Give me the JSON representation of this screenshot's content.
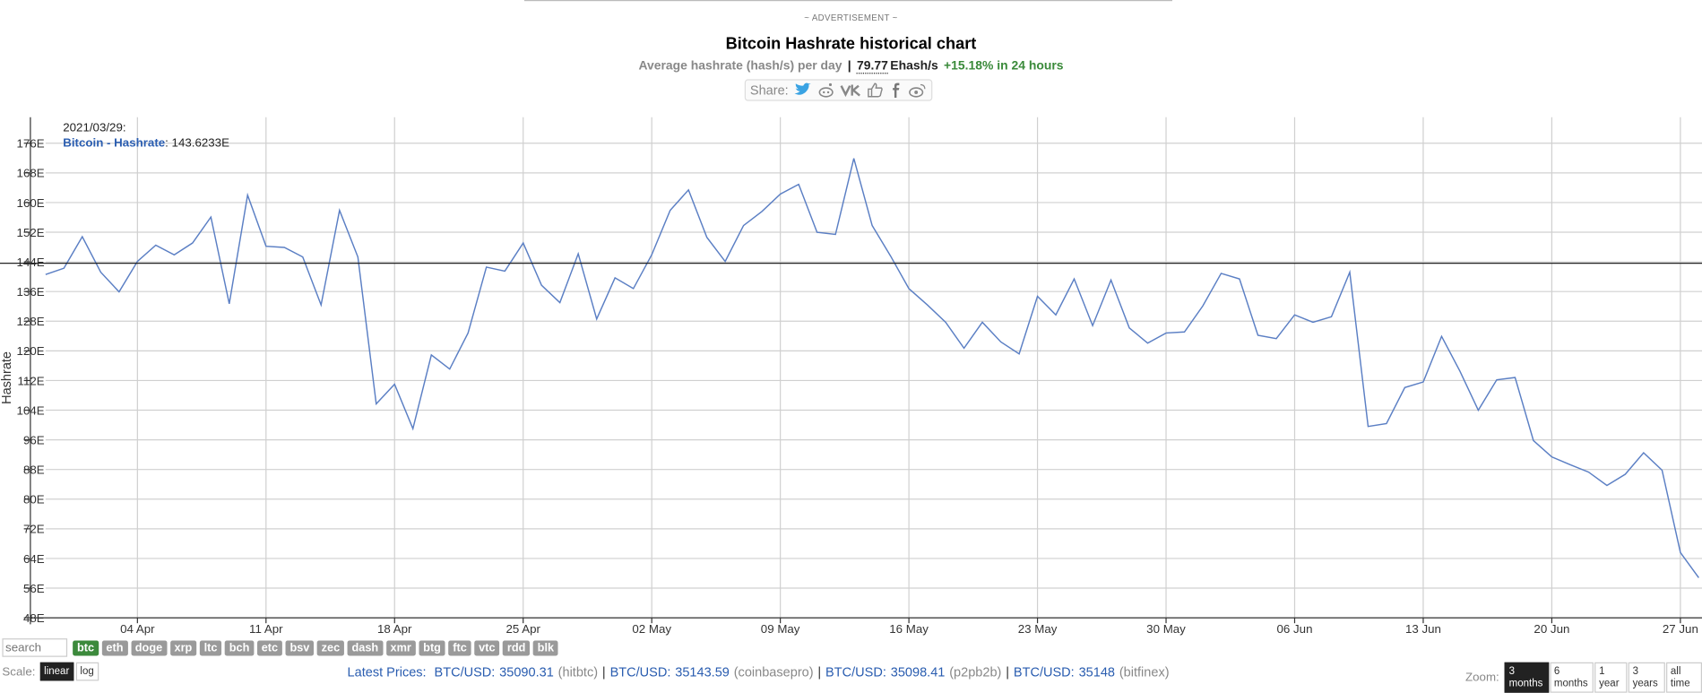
{
  "header": {
    "ad": "~ ADVERTISEMENT ~",
    "title": "Bitcoin Hashrate historical chart",
    "subtitle": "Average hashrate (hash/s) per day",
    "separator": "|",
    "current_value": "79.77",
    "current_unit": "Ehash/s",
    "change": "+15.18% in 24 hours",
    "share": "Share:"
  },
  "chart_data": {
    "type": "line",
    "ylabel": "Hashrate",
    "tooltip": {
      "date": "2021/03/29:",
      "series": "Bitcoin - Hashrate",
      "value": 143.6233,
      "value_label": ": 143.6233E"
    },
    "x": [
      "2021/03/30",
      "2021/03/31",
      "2021/04/01",
      "2021/04/02",
      "2021/04/03",
      "2021/04/04",
      "2021/04/05",
      "2021/04/06",
      "2021/04/07",
      "2021/04/08",
      "2021/04/09",
      "2021/04/10",
      "2021/04/11",
      "2021/04/12",
      "2021/04/13",
      "2021/04/14",
      "2021/04/15",
      "2021/04/16",
      "2021/04/17",
      "2021/04/18",
      "2021/04/19",
      "2021/04/20",
      "2021/04/21",
      "2021/04/22",
      "2021/04/23",
      "2021/04/24",
      "2021/04/25",
      "2021/04/26",
      "2021/04/27",
      "2021/04/28",
      "2021/04/29",
      "2021/04/30",
      "2021/05/01",
      "2021/05/02",
      "2021/05/03",
      "2021/05/04",
      "2021/05/05",
      "2021/05/06",
      "2021/05/07",
      "2021/05/08",
      "2021/05/09",
      "2021/05/10",
      "2021/05/11",
      "2021/05/12",
      "2021/05/13",
      "2021/05/14",
      "2021/05/15",
      "2021/05/16",
      "2021/05/17",
      "2021/05/18",
      "2021/05/19",
      "2021/05/20",
      "2021/05/21",
      "2021/05/22",
      "2021/05/23",
      "2021/05/24",
      "2021/05/25",
      "2021/05/26",
      "2021/05/27",
      "2021/05/28",
      "2021/05/29",
      "2021/05/30",
      "2021/05/31",
      "2021/06/01",
      "2021/06/02",
      "2021/06/03",
      "2021/06/04",
      "2021/06/05",
      "2021/06/06",
      "2021/06/07",
      "2021/06/08",
      "2021/06/09",
      "2021/06/10",
      "2021/06/11",
      "2021/06/12",
      "2021/06/13",
      "2021/06/14",
      "2021/06/15",
      "2021/06/16",
      "2021/06/17",
      "2021/06/18",
      "2021/06/19",
      "2021/06/20",
      "2021/06/21",
      "2021/06/22",
      "2021/06/23",
      "2021/06/24",
      "2021/06/25",
      "2021/06/26",
      "2021/06/27",
      "2021/06/28"
    ],
    "series": [
      {
        "name": "Bitcoin - Hashrate",
        "color": "#5b7fc4",
        "values": [
          140.6,
          142.3,
          150.8,
          141.2,
          135.9,
          144.1,
          148.5,
          145.9,
          149.1,
          156.1,
          132.7,
          162.0,
          148.2,
          147.9,
          145.3,
          132.4,
          157.9,
          145.3,
          105.7,
          111.0,
          99.0,
          118.9,
          115.1,
          124.8,
          142.6,
          141.5,
          149.1,
          137.7,
          133.0,
          146.2,
          128.6,
          139.7,
          136.8,
          145.9,
          157.9,
          163.4,
          150.6,
          144.1,
          153.8,
          157.6,
          162.3,
          164.9,
          152.0,
          151.4,
          171.9,
          153.8,
          145.6,
          136.8,
          132.4,
          127.7,
          120.7,
          127.7,
          122.4,
          119.2,
          134.7,
          129.7,
          139.4,
          126.8,
          139.1,
          126.2,
          122.1,
          124.8,
          125.1,
          132.1,
          140.9,
          139.4,
          124.2,
          123.3,
          129.7,
          127.7,
          129.2,
          141.2,
          99.6,
          100.4,
          110.1,
          111.6,
          123.9,
          114.5,
          104.0,
          112.2,
          112.8,
          95.8,
          91.4,
          89.3,
          87.3,
          83.7,
          86.7,
          92.5,
          87.8,
          65.6,
          58.8
        ]
      }
    ],
    "xlim": [
      "2021/03/30",
      "2021/06/28"
    ],
    "xticks": [
      {
        "value": "2021/04/04",
        "label": "04 Apr"
      },
      {
        "value": "2021/04/11",
        "label": "11 Apr"
      },
      {
        "value": "2021/04/18",
        "label": "18 Apr"
      },
      {
        "value": "2021/04/25",
        "label": "25 Apr"
      },
      {
        "value": "2021/05/02",
        "label": "02 May"
      },
      {
        "value": "2021/05/09",
        "label": "09 May"
      },
      {
        "value": "2021/05/16",
        "label": "16 May"
      },
      {
        "value": "2021/05/23",
        "label": "23 May"
      },
      {
        "value": "2021/05/30",
        "label": "30 May"
      },
      {
        "value": "2021/06/06",
        "label": "06 Jun"
      },
      {
        "value": "2021/06/13",
        "label": "13 Jun"
      },
      {
        "value": "2021/06/20",
        "label": "20 Jun"
      },
      {
        "value": "2021/06/27",
        "label": "27 Jun"
      }
    ],
    "ylim": [
      48,
      183
    ],
    "yticks": [
      {
        "value": 48,
        "label": "48E"
      },
      {
        "value": 56,
        "label": "56E"
      },
      {
        "value": 64,
        "label": "64E"
      },
      {
        "value": 72,
        "label": "72E"
      },
      {
        "value": 80,
        "label": "80E"
      },
      {
        "value": 88,
        "label": "88E"
      },
      {
        "value": 96,
        "label": "96E"
      },
      {
        "value": 104,
        "label": "104E"
      },
      {
        "value": 112,
        "label": "112E"
      },
      {
        "value": 120,
        "label": "120E"
      },
      {
        "value": 128,
        "label": "128E"
      },
      {
        "value": 136,
        "label": "136E"
      },
      {
        "value": 144,
        "label": "144E"
      },
      {
        "value": 152,
        "label": "152E"
      },
      {
        "value": 160,
        "label": "160E"
      },
      {
        "value": 168,
        "label": "168E"
      },
      {
        "value": 176,
        "label": "176E"
      }
    ],
    "grid": true
  },
  "toolbar": {
    "search": "search",
    "coins": [
      "btc",
      "eth",
      "doge",
      "xrp",
      "ltc",
      "bch",
      "etc",
      "bsv",
      "zec",
      "dash",
      "xmr",
      "btg",
      "ftc",
      "vtc",
      "rdd",
      "blk"
    ],
    "scale_label": "Scale:",
    "scales": [
      "linear",
      "log"
    ],
    "prices_label": "Latest Prices:",
    "separator": "|",
    "prices": [
      {
        "pair": "BTC/USD:",
        "price": 35090.31,
        "exchange": "(hitbtc)"
      },
      {
        "pair": "BTC/USD:",
        "price": 35143.59,
        "exchange": "(coinbasepro)"
      },
      {
        "pair": "BTC/USD:",
        "price": 35098.41,
        "exchange": "(p2pb2b)"
      },
      {
        "pair": "BTC/USD:",
        "price": 35148,
        "exchange": "(bitfinex)"
      }
    ],
    "zoom_label": "Zoom:",
    "zooms": [
      "3 months",
      "6 months",
      "1 year",
      "3 years",
      "all time"
    ]
  }
}
